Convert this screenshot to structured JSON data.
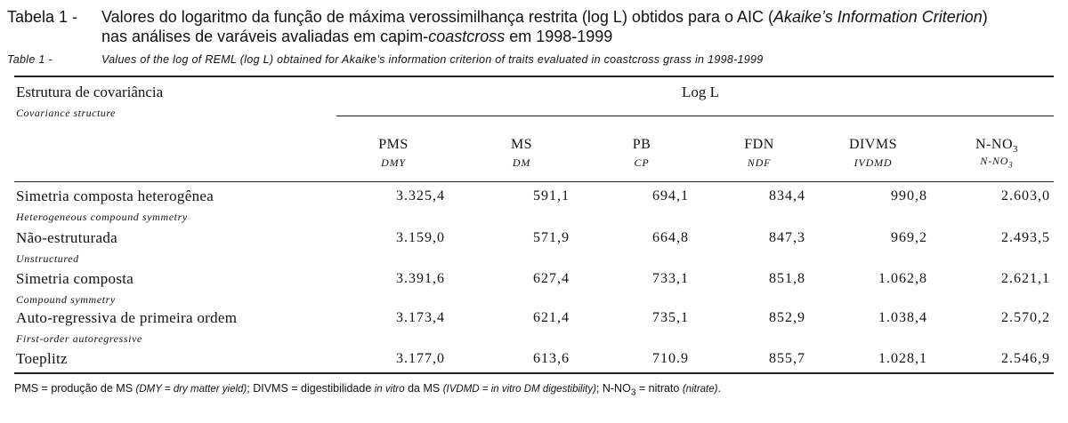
{
  "title": {
    "label_pt": "Tabela 1 -",
    "text_pt_1": "Valores do logaritmo da função de máxima verossimilhança restrita (log L) obtidos para o AIC (",
    "text_pt_italic": "Akaike’s Information Criterion",
    "text_pt_2": ")",
    "text_pt_3": "nas análises de varáveis avaliadas em capim-",
    "text_pt_italic2": "coastcross",
    "text_pt_4": " em 1998-1999",
    "label_en": "Table 1 -",
    "text_en": "Values of the log of REML (log L) obtained for Akaike’s information criterion of traits evaluated in coastcross grass in 1998-1999"
  },
  "table": {
    "header_left_pt": "Estrutura de covariância",
    "header_left_en": "Covariance structure",
    "header_group": "Log L",
    "columns": [
      {
        "pt": "PMS",
        "en": "DMY"
      },
      {
        "pt": "MS",
        "en": "DM"
      },
      {
        "pt": "PB",
        "en": "CP"
      },
      {
        "pt": "FDN",
        "en": "NDF"
      },
      {
        "pt": "DIVMS",
        "en": "IVDMD"
      },
      {
        "pt": "N-NO",
        "en": "N-NO",
        "sub": "3"
      }
    ],
    "rows": [
      {
        "pt": "Simetria composta heterogênea",
        "en": "Heterogeneous compound symmetry",
        "values": [
          "3.325,4",
          "591,1",
          "694,1",
          "834,4",
          "990,8",
          "2.603,0"
        ]
      },
      {
        "pt": "Não-estruturada",
        "en": "Unstructured",
        "values": [
          "3.159,0",
          "571,9",
          "664,8",
          "847,3",
          "969,2",
          "2.493,5"
        ]
      },
      {
        "pt": "Simetria composta",
        "en": "Compound symmetry",
        "values": [
          "3.391,6",
          "627,4",
          "733,1",
          "851,8",
          "1.062,8",
          "2.621,1"
        ]
      },
      {
        "pt": "Auto-regressiva de primeira ordem",
        "en": "First-order autoregressive",
        "values": [
          "3.173,4",
          "621,4",
          "735,1",
          "852,9",
          "1.038,4",
          "2.570,2"
        ]
      },
      {
        "pt": "Toeplitz",
        "en": "",
        "values": [
          "3.177,0",
          "613,6",
          "710.9",
          "855,7",
          "1.028,1",
          "2.546,9"
        ]
      }
    ]
  },
  "footnote": {
    "p1": "PMS = produção de MS ",
    "i1": "(DMY = dry matter yield)",
    "p2": "; DIVMS = digestibilidade ",
    "i2": "in vitro",
    "p3": " da MS ",
    "i3": "(IVDMD = in vitro DM digestibility)",
    "p4": "; N-NO",
    "sub": "3",
    "p5": " = nitrato ",
    "i4": "(nitrate)",
    "p6": "."
  }
}
